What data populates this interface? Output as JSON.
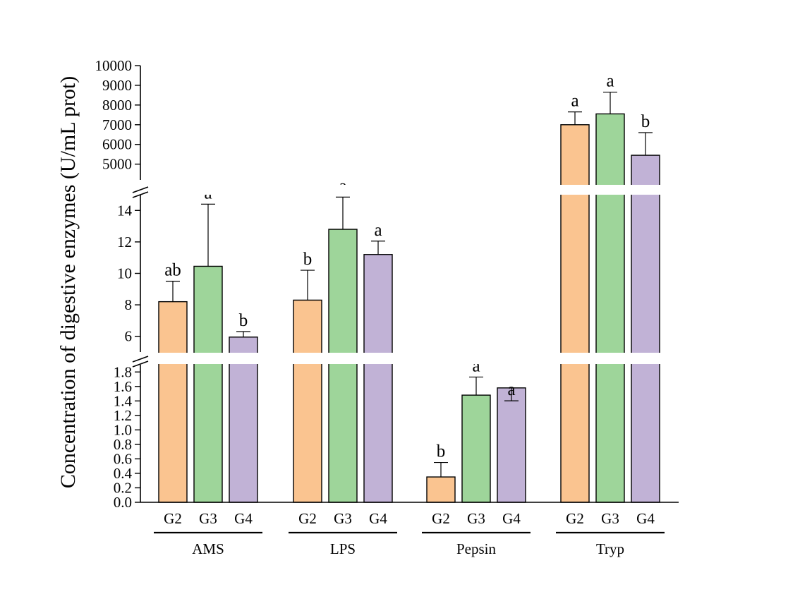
{
  "chart_data": {
    "type": "bar",
    "ylabel": "Concentration of digestive enzymes (U/mL prot)",
    "groups": [
      "AMS",
      "LPS",
      "Pepsin",
      "Tryp"
    ],
    "subcategories": [
      "G2",
      "G3",
      "G4"
    ],
    "colors": {
      "G2": "#FAC490",
      "G3": "#9ED59A",
      "G4": "#C1B2D6"
    },
    "axis_segments": [
      {
        "range": [
          0,
          1.9
        ],
        "ticks": [
          "0.0",
          "0.2",
          "0.4",
          "0.6",
          "0.8",
          "1.0",
          "1.2",
          "1.4",
          "1.6",
          "1.8"
        ]
      },
      {
        "range": [
          5,
          15
        ],
        "ticks": [
          "6",
          "8",
          "10",
          "12",
          "14"
        ]
      },
      {
        "range": [
          4200,
          10000
        ],
        "ticks": [
          "5000",
          "6000",
          "7000",
          "8000",
          "9000",
          "10000"
        ]
      }
    ],
    "grid": false,
    "legend": "none",
    "bars": [
      {
        "group": "AMS",
        "sub": "G2",
        "value": 8.2,
        "error": 1.3,
        "sig": "ab"
      },
      {
        "group": "AMS",
        "sub": "G3",
        "value": 10.45,
        "error": 3.95,
        "sig": "a"
      },
      {
        "group": "AMS",
        "sub": "G4",
        "value": 5.95,
        "error": 0.35,
        "sig": "b"
      },
      {
        "group": "LPS",
        "sub": "G2",
        "value": 8.3,
        "error": 1.9,
        "sig": "b"
      },
      {
        "group": "LPS",
        "sub": "G3",
        "value": 12.8,
        "error": 2.05,
        "sig": "a"
      },
      {
        "group": "LPS",
        "sub": "G4",
        "value": 11.2,
        "error": 0.85,
        "sig": "a"
      },
      {
        "group": "Pepsin",
        "sub": "G2",
        "value": 0.35,
        "error": 0.2,
        "sig": "b"
      },
      {
        "group": "Pepsin",
        "sub": "G3",
        "value": 1.48,
        "error": 0.25,
        "sig": "a"
      },
      {
        "group": "Pepsin",
        "sub": "G4",
        "value": 1.58,
        "error": 0.32,
        "sig": "a"
      },
      {
        "group": "Tryp",
        "sub": "G2",
        "value": 7000,
        "error": 650,
        "sig": "a"
      },
      {
        "group": "Tryp",
        "sub": "G3",
        "value": 7550,
        "error": 1100,
        "sig": "a"
      },
      {
        "group": "Tryp",
        "sub": "G4",
        "value": 5450,
        "error": 1150,
        "sig": "b"
      }
    ]
  }
}
